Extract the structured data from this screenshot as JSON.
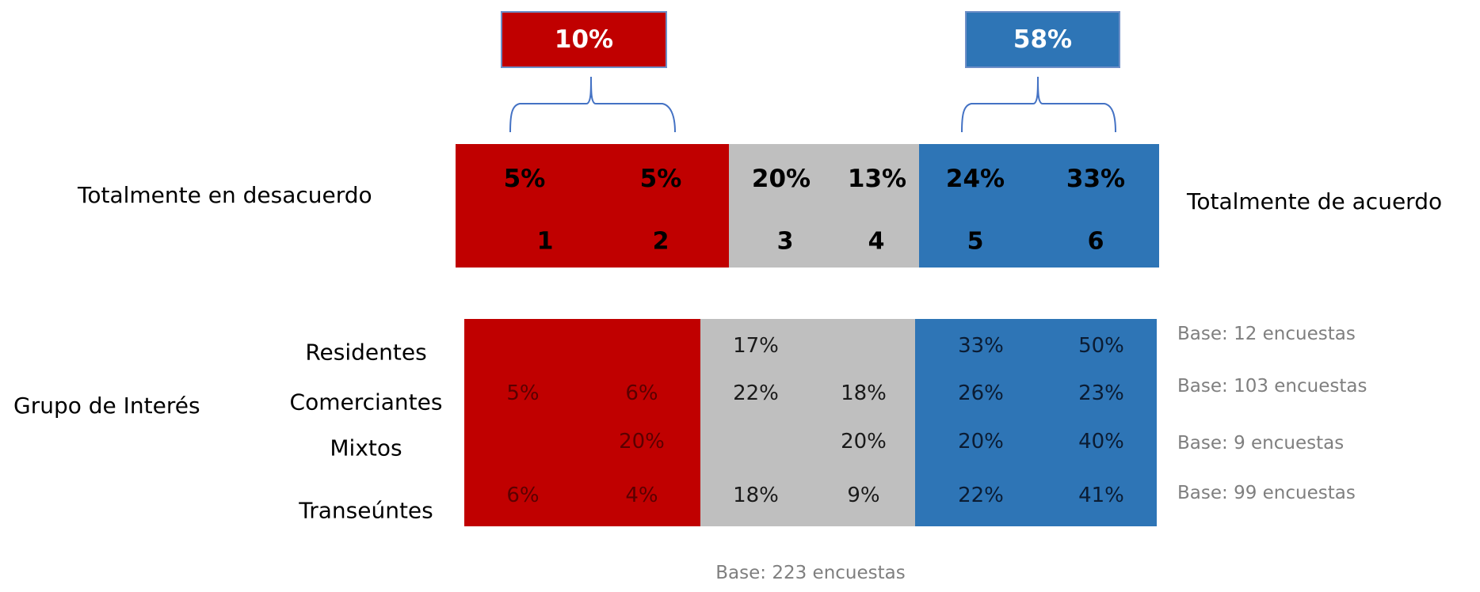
{
  "colors": {
    "disagree": "#c00000",
    "neutral": "#bfbfbf",
    "agree": "#2e75b6",
    "base_text": "#7f7f7f"
  },
  "summary": {
    "disagree_total": "10%",
    "agree_total": "58%"
  },
  "labels": {
    "left": "Totalmente en desacuerdo",
    "right": "Totalmente de acuerdo",
    "group_title": "Grupo de Interés",
    "total_base": "Base: 223 encuestas"
  },
  "chart_data": {
    "type": "table",
    "scale": [
      "1",
      "2",
      "3",
      "4",
      "5",
      "6"
    ],
    "total": {
      "values": [
        "5%",
        "5%",
        "20%",
        "13%",
        "24%",
        "33%"
      ]
    },
    "groups": [
      {
        "name": "Residentes",
        "values": [
          "",
          "",
          "17%",
          "",
          "33%",
          "50%"
        ],
        "base": "Base: 12 encuestas"
      },
      {
        "name": "Comerciantes",
        "values": [
          "5%",
          "6%",
          "22%",
          "18%",
          "26%",
          "23%"
        ],
        "base": "Base: 103 encuestas"
      },
      {
        "name": "Mixtos",
        "values": [
          "",
          "20%",
          "",
          "20%",
          "20%",
          "40%"
        ],
        "base": "Base: 9 encuestas"
      },
      {
        "name": "Transeúntes",
        "values": [
          "6%",
          "4%",
          "18%",
          "9%",
          "22%",
          "41%"
        ],
        "base": "Base: 99 encuestas"
      }
    ]
  }
}
